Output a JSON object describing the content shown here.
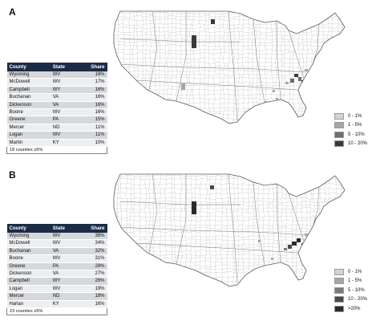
{
  "chart_data": [
    {
      "type": "table",
      "panel_label": "A",
      "columns": [
        "County",
        "State",
        "Share"
      ],
      "rows": [
        [
          "Wyoming",
          "WV",
          "18%"
        ],
        [
          "McDowell",
          "WV",
          "17%"
        ],
        [
          "Campbell",
          "WY",
          "16%"
        ],
        [
          "Buchanan",
          "VA",
          "16%"
        ],
        [
          "Dickenson",
          "VA",
          "16%"
        ],
        [
          "Boone",
          "WV",
          "16%"
        ],
        [
          "Greene",
          "PA",
          "15%"
        ],
        [
          "Mercer",
          "ND",
          "11%"
        ],
        [
          "Logan",
          "WV",
          "11%"
        ],
        [
          "Martin",
          "KY",
          "10%"
        ]
      ],
      "footnote": "18 counties ≥5%",
      "legend": {
        "placement": "bottom-right",
        "entries": [
          {
            "label": "0 - 1%",
            "color": "#d4d4d4"
          },
          {
            "label": "1 - 5%",
            "color": "#a6a6a6"
          },
          {
            "label": "5 - 10%",
            "color": "#6e6e6e"
          },
          {
            "label": "10 - 20%",
            "color": "#3a3a3a"
          }
        ]
      }
    },
    {
      "type": "table",
      "panel_label": "B",
      "columns": [
        "County",
        "State",
        "Share"
      ],
      "rows": [
        [
          "Wyoming",
          "WV",
          "36%"
        ],
        [
          "McDowell",
          "WV",
          "34%"
        ],
        [
          "Buchanan",
          "VA",
          "32%"
        ],
        [
          "Boone",
          "WV",
          "31%"
        ],
        [
          "Greene",
          "PA",
          "28%"
        ],
        [
          "Dickenson",
          "VA",
          "27%"
        ],
        [
          "Campbell",
          "WY",
          "26%"
        ],
        [
          "Logan",
          "WV",
          "19%"
        ],
        [
          "Mercer",
          "ND",
          "18%"
        ],
        [
          "Harlan",
          "KY",
          "16%"
        ]
      ],
      "footnote": "23 counties ≥5%",
      "legend": {
        "placement": "bottom-right",
        "entries": [
          {
            "label": "0 - 1%",
            "color": "#d4d4d4"
          },
          {
            "label": "1 - 5%",
            "color": "#a6a6a6"
          },
          {
            "label": "5 - 10%",
            "color": "#7a7a7a"
          },
          {
            "label": "10 - 20%",
            "color": "#4a4a4a"
          },
          {
            "label": ">20%",
            "color": "#2a2a2a"
          }
        ]
      }
    }
  ]
}
